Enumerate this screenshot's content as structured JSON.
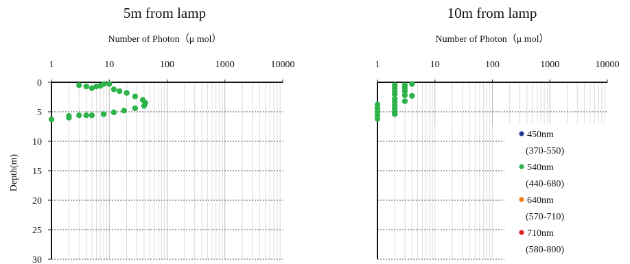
{
  "chart_data": [
    {
      "type": "scatter",
      "title": "5m from lamp",
      "xlabel": "Number of Photon（μ mol）",
      "ylabel": "Depth(m)",
      "xscale": "log",
      "xlim": [
        1,
        10000
      ],
      "ylim": [
        30,
        0
      ],
      "x_ticks": [
        "1",
        "10",
        "100",
        "1000",
        "10000"
      ],
      "y_ticks": [
        "0",
        "5",
        "10",
        "15",
        "20",
        "25",
        "30"
      ],
      "grid": "x major+minor (light gray), y major dashed",
      "series": [
        {
          "name": "540nm",
          "color": "#2db34a",
          "points": [
            {
              "x": 3,
              "y": 0.5
            },
            {
              "x": 4,
              "y": 0.7
            },
            {
              "x": 5,
              "y": 1.0
            },
            {
              "x": 6,
              "y": 0.7
            },
            {
              "x": 7,
              "y": 0.6
            },
            {
              "x": 8,
              "y": 0.3
            },
            {
              "x": 10,
              "y": 0.3
            },
            {
              "x": 12,
              "y": 1.2
            },
            {
              "x": 15,
              "y": 1.5
            },
            {
              "x": 20,
              "y": 1.8
            },
            {
              "x": 28,
              "y": 2.4
            },
            {
              "x": 38,
              "y": 3.0
            },
            {
              "x": 42,
              "y": 3.5
            },
            {
              "x": 40,
              "y": 4.0
            },
            {
              "x": 28,
              "y": 4.4
            },
            {
              "x": 18,
              "y": 4.8
            },
            {
              "x": 12,
              "y": 5.1
            },
            {
              "x": 8,
              "y": 5.4
            },
            {
              "x": 5,
              "y": 5.6
            },
            {
              "x": 4,
              "y": 5.6
            },
            {
              "x": 3,
              "y": 5.6
            },
            {
              "x": 2,
              "y": 5.7
            },
            {
              "x": 2,
              "y": 6.0
            },
            {
              "x": 1,
              "y": 6.3
            }
          ]
        }
      ]
    },
    {
      "type": "scatter",
      "title": "10m from lamp",
      "xlabel": "Number of Photon（μ mol）",
      "ylabel": "",
      "xscale": "log",
      "xlim": [
        1,
        10000
      ],
      "ylim": [
        30,
        0
      ],
      "x_ticks": [
        "1",
        "10",
        "100",
        "1000",
        "10000"
      ],
      "series": [
        {
          "name": "540nm",
          "color": "#2db34a",
          "points": [
            {
              "x": 4,
              "y": 0.3
            },
            {
              "x": 3,
              "y": 0.5
            },
            {
              "x": 2,
              "y": 0.5
            },
            {
              "x": 3,
              "y": 1.0
            },
            {
              "x": 2,
              "y": 1.0
            },
            {
              "x": 3,
              "y": 1.5
            },
            {
              "x": 2,
              "y": 1.5
            },
            {
              "x": 4,
              "y": 2.3
            },
            {
              "x": 2,
              "y": 2.0
            },
            {
              "x": 3,
              "y": 2.2
            },
            {
              "x": 2,
              "y": 2.8
            },
            {
              "x": 3,
              "y": 3.2
            },
            {
              "x": 2,
              "y": 3.3
            },
            {
              "x": 2,
              "y": 3.9
            },
            {
              "x": 1,
              "y": 3.8
            },
            {
              "x": 2,
              "y": 4.4
            },
            {
              "x": 1,
              "y": 4.4
            },
            {
              "x": 2,
              "y": 5.0
            },
            {
              "x": 1,
              "y": 5.0
            },
            {
              "x": 2,
              "y": 5.4
            },
            {
              "x": 1,
              "y": 5.6
            },
            {
              "x": 1,
              "y": 6.2
            }
          ]
        }
      ],
      "legend": {
        "position": "right",
        "entries": [
          {
            "label": "450nm",
            "range": "(370-550)",
            "color": "#1f3a93"
          },
          {
            "label": "540nm",
            "range": "(440-680)",
            "color": "#2db34a"
          },
          {
            "label": "640nm",
            "range": "(570-710)",
            "color": "#f07a1a"
          },
          {
            "label": "710nm",
            "range": "(580-800)",
            "color": "#e02020"
          }
        ]
      }
    }
  ]
}
